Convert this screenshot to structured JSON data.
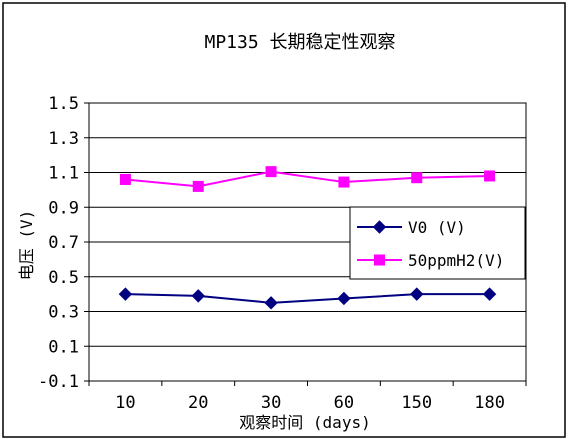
{
  "chart_data": {
    "type": "line",
    "title": "MP135 长期稳定性观察",
    "xlabel": "观察时间 (days)",
    "ylabel": "电压 (V)",
    "categories": [
      "10",
      "20",
      "30",
      "60",
      "150",
      "180"
    ],
    "ylim": [
      -0.1,
      1.5
    ],
    "yticks": [
      "-0.1",
      "0.1",
      "0.3",
      "0.5",
      "0.7",
      "0.9",
      "1.1",
      "1.3",
      "1.5"
    ],
    "grid": true,
    "legend_position": "right",
    "series": [
      {
        "name": "V0 (V)",
        "values": [
          0.4,
          0.39,
          0.35,
          0.375,
          0.4,
          0.4
        ],
        "color": "#000080",
        "marker": "diamond"
      },
      {
        "name": "50ppmH2(V)",
        "values": [
          1.06,
          1.02,
          1.105,
          1.045,
          1.07,
          1.08
        ],
        "color": "#FF00FF",
        "marker": "square"
      }
    ]
  }
}
